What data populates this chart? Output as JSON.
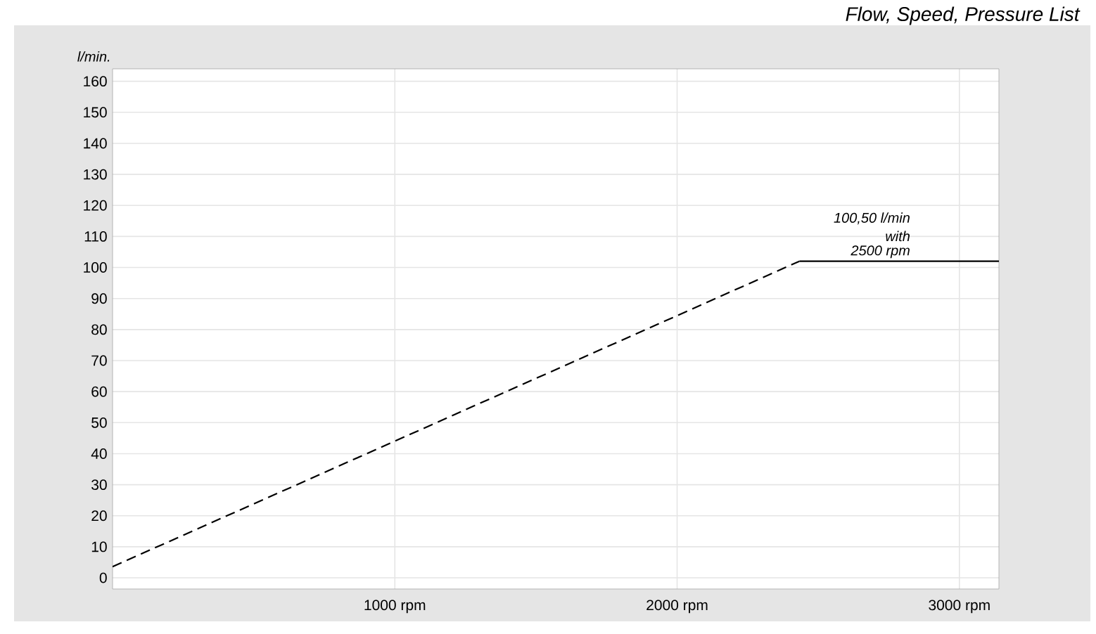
{
  "chart_data": {
    "type": "line",
    "title": "Flow, Speed, Pressure List",
    "ylabel": "l/min.",
    "xlim": [
      0,
      3140
    ],
    "ylim": [
      -3.6,
      164
    ],
    "xticks": [
      {
        "value": 1000,
        "label": "1000 rpm"
      },
      {
        "value": 2000,
        "label": "2000 rpm"
      },
      {
        "value": 3000,
        "label": "3000 rpm"
      }
    ],
    "yticks": [
      0,
      10,
      20,
      30,
      40,
      50,
      60,
      70,
      80,
      90,
      100,
      110,
      120,
      130,
      140,
      150,
      160
    ],
    "grid": true,
    "series": [
      {
        "color": "#000000",
        "line_style": "dashed",
        "x": [
          0,
          2433
        ],
        "values": [
          3.6,
          102
        ]
      },
      {
        "color": "#000000",
        "line_style": "solid",
        "x": [
          2433,
          3140
        ],
        "values": [
          102,
          102
        ]
      }
    ],
    "annotations": [
      "100,50 l/min",
      "with",
      "2500 rpm"
    ]
  }
}
